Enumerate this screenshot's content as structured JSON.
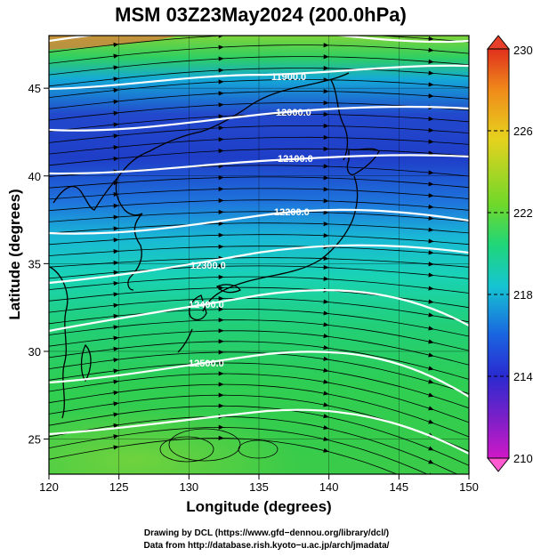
{
  "title": "MSM 03Z23May2024 (200.0hPa)",
  "xlabel": "Longitude (degrees)",
  "ylabel": "Latitude  (degrees)",
  "x_ticks": [
    "120",
    "125",
    "130",
    "135",
    "140",
    "145",
    "150"
  ],
  "y_ticks": [
    "25",
    "30",
    "35",
    "40",
    "45"
  ],
  "colorbar": {
    "ticks": [
      "230",
      "226",
      "222",
      "218",
      "214",
      "210"
    ],
    "colors_top_to_bottom": [
      "#e0301c",
      "#f08a1a",
      "#e6d21e",
      "#6fd82a",
      "#1fd67a",
      "#16c4d2",
      "#1a64e0",
      "#2a2ad0",
      "#7a20c8",
      "#d018c8"
    ],
    "min_marker": "#ff5ad0",
    "max_marker": "#e6402a"
  },
  "contour_labels": [
    {
      "id": "c11900",
      "text": "11900.0"
    },
    {
      "id": "c12000",
      "text": "12000.0"
    },
    {
      "id": "c12100",
      "text": "12100.0"
    },
    {
      "id": "c12200",
      "text": "12200.0"
    },
    {
      "id": "c12300",
      "text": "12300.0"
    },
    {
      "id": "c12400",
      "text": "12400.0"
    },
    {
      "id": "c12500",
      "text": "12500.0"
    }
  ],
  "credits": {
    "line1": "Drawing by DCL (https://www.gfd−dennou.org/library/dcl/)",
    "line2": "Data from http://database.rish.kyoto−u.ac.jp/arch/jmadata/"
  },
  "map": {
    "region": "East Asia / Japan",
    "lon_range": [
      120,
      150
    ],
    "lat_range": [
      23,
      48
    ],
    "field": "temperature shading with geopotential height contours and wind streamlines",
    "colors": {
      "cold_core": "#1f3ec8",
      "cool": "#1e9ae0",
      "mid": "#19d3b4",
      "warm": "#29c95a",
      "warmest": "#7ed43a",
      "coastline": "#000000",
      "contour": "#ffffff",
      "streamline": "#000000"
    }
  }
}
